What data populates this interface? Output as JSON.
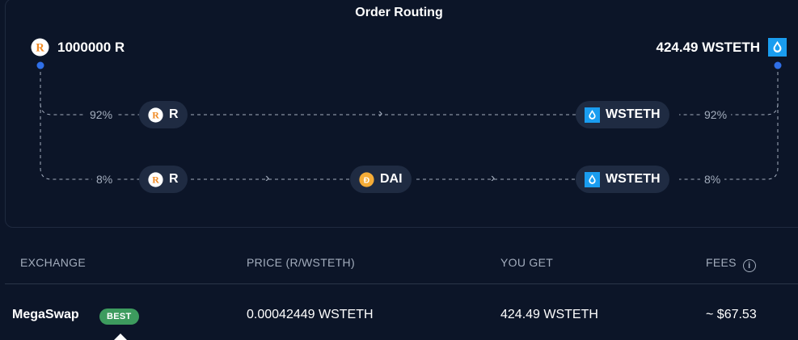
{
  "title": "Order Routing",
  "from_token": {
    "amount": "1000000 R",
    "icon": "r-token-icon"
  },
  "to_token": {
    "amount": "424.49 WSTETH",
    "icon": "wsteth-token-icon"
  },
  "routes": [
    {
      "share_in": "92%",
      "share_out": "92%",
      "hops": [
        {
          "label": "R",
          "icon": "r-token-icon"
        },
        {
          "label": "WSTETH",
          "icon": "wsteth-token-icon"
        }
      ]
    },
    {
      "share_in": "8%",
      "share_out": "8%",
      "hops": [
        {
          "label": "R",
          "icon": "r-token-icon"
        },
        {
          "label": "DAI",
          "icon": "dai-token-icon"
        },
        {
          "label": "WSTETH",
          "icon": "wsteth-token-icon"
        }
      ]
    }
  ],
  "table": {
    "headers": {
      "exchange": "EXCHANGE",
      "price": "PRICE (R/WSTETH)",
      "you_get": "YOU GET",
      "fees": "FEES"
    },
    "rows": [
      {
        "exchange": "MegaSwap",
        "badge": "BEST",
        "price": "0.00042449 WSTETH",
        "you_get": "424.49 WSTETH",
        "fees": "~ $67.53"
      }
    ]
  },
  "colors": {
    "background": "#0c1528",
    "pill": "#1f2b42",
    "accent_dot": "#2f6fe8",
    "best_badge": "#3d9b5e",
    "muted_text": "#a3adbd"
  }
}
